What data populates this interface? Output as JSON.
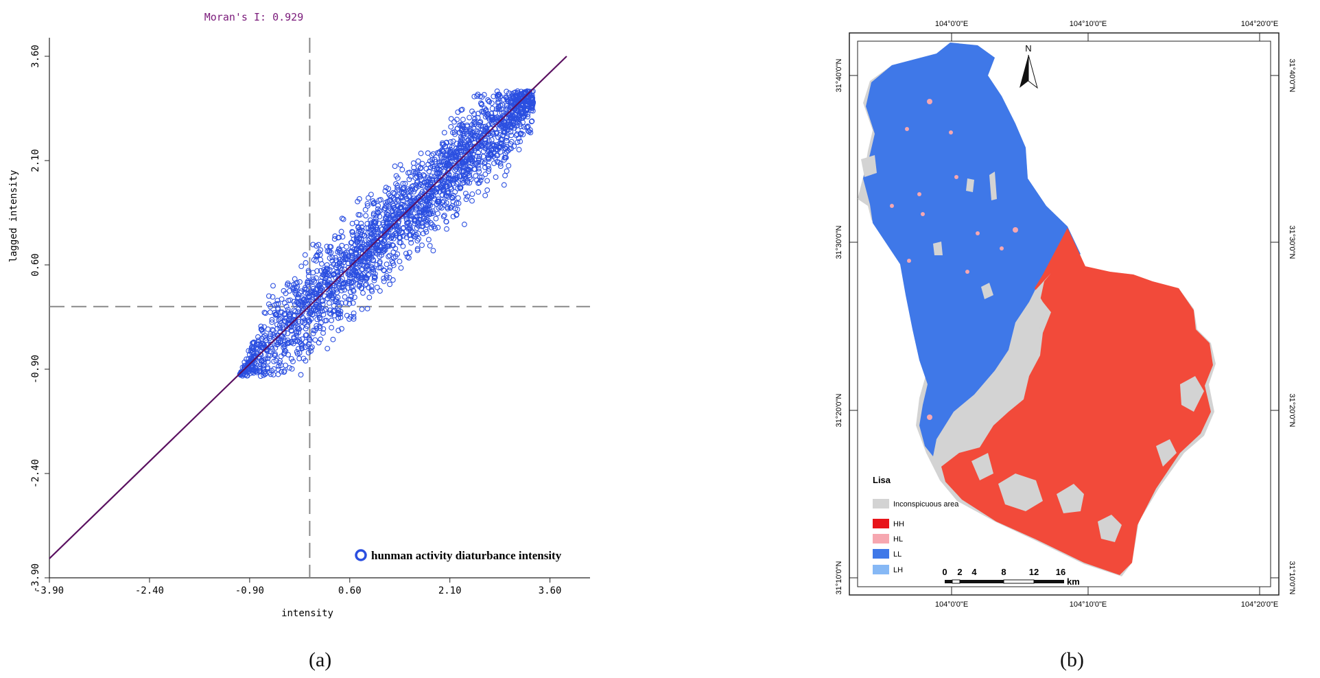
{
  "captions": {
    "a": "(a)",
    "b": "(b)"
  },
  "chart_data": [
    {
      "type": "scatter",
      "title": "Moran's I: 0.929",
      "xlabel": "intensity",
      "ylabel": "lagged intensity",
      "xticks": [
        "-3.90",
        "-2.40",
        "-0.90",
        "0.60",
        "2.10",
        "3.60"
      ],
      "yticks": [
        "-3.90",
        "-2.40",
        "-0.90",
        "0.60",
        "2.10",
        "3.60"
      ],
      "xlim": [
        -3.9,
        4.2
      ],
      "ylim": [
        -3.9,
        3.6
      ],
      "legend": {
        "label": "hunman activity diaturbance intensity",
        "placement": "bottom-right"
      },
      "reference_lines": {
        "x_mean": 0.0,
        "y_mean": 0.0
      },
      "regression": {
        "slope": 0.929,
        "intercept": 0.0
      },
      "colors": {
        "points": "#2b4fe0",
        "regression": "#5a1060",
        "reference": "#888888",
        "title": "#7a1a7a"
      },
      "point_cloud": {
        "count": 2400,
        "x_range": [
          -1.05,
          3.35
        ],
        "spread": 0.55
      }
    },
    {
      "type": "map",
      "legend_title": "Lisa",
      "legend_items": [
        {
          "label": "Inconspicuous area",
          "color": "#d3d3d3"
        },
        {
          "label": "HH",
          "color": "#e8141a"
        },
        {
          "label": "HL",
          "color": "#f6a7b0"
        },
        {
          "label": "LL",
          "color": "#3f78e8"
        },
        {
          "label": "LH",
          "color": "#86b8f5"
        }
      ],
      "top_lon_labels": [
        "104°0'0\"E",
        "104°10'0\"E",
        "104°20'0\"E"
      ],
      "bottom_lon_labels": [
        "104°0'0\"E",
        "104°10'0\"E",
        "104°20'0\"E"
      ],
      "lat_labels": [
        "31°40'0\"N",
        "31°30'0\"N",
        "31°20'0\"N",
        "31°10'0\"N"
      ],
      "north_label": "N",
      "scale_labels": [
        "0",
        "2",
        "4",
        "8",
        "12",
        "16"
      ],
      "scale_unit": "km",
      "region_colors": {
        "ll": "#3f78e8",
        "hh": "#f24a3a",
        "gray": "#d3d3d3",
        "hl": "#f6a7b0"
      }
    }
  ]
}
